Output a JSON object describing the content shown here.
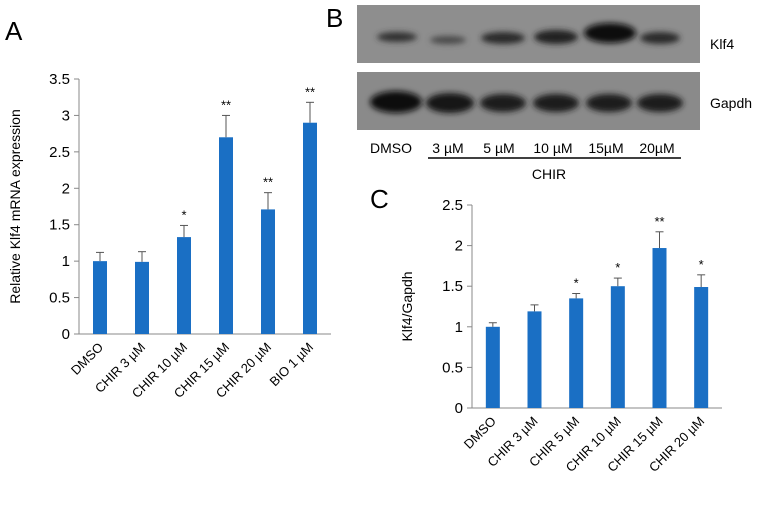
{
  "chart_data": [
    {
      "type": "bar",
      "panel": "A",
      "ylabel": "Relative Klf4 mRNA expression",
      "categories": [
        "DMSO",
        "CHIR 3 µM",
        "CHIR 10 µM",
        "CHIR 15 µM",
        "CHIR 20 µM",
        "BIO 1 µM"
      ],
      "values": [
        1.0,
        0.99,
        1.33,
        2.7,
        1.71,
        2.9
      ],
      "errors": [
        0.12,
        0.14,
        0.16,
        0.3,
        0.23,
        0.28
      ],
      "annotations": [
        null,
        null,
        "*",
        "**",
        "**",
        "**"
      ],
      "color": "#1a6fc4",
      "ylim": [
        0,
        3.5
      ],
      "yticks": [
        0,
        0.5,
        1,
        1.5,
        2,
        2.5,
        3,
        3.5
      ]
    },
    {
      "type": "bar",
      "panel": "C",
      "ylabel": "Klf4/Gapdh",
      "categories": [
        "DMSO",
        "CHIR 3 µM",
        "CHIR 5 µM",
        "CHIR 10 µM",
        "CHIR 15 µM",
        "CHIR 20 µM"
      ],
      "values": [
        1.0,
        1.19,
        1.35,
        1.5,
        1.97,
        1.49
      ],
      "errors": [
        0.05,
        0.08,
        0.06,
        0.1,
        0.2,
        0.15
      ],
      "annotations": [
        null,
        null,
        "*",
        "*",
        "**",
        "*"
      ],
      "color": "#1a6fc4",
      "ylim": [
        0,
        2.5
      ],
      "yticks": [
        0,
        0.5,
        1,
        1.5,
        2,
        2.5
      ]
    }
  ],
  "blot": {
    "panel": "B",
    "rows": [
      "Klf4",
      "Gapdh"
    ],
    "lanes": [
      "DMSO",
      "3 µM",
      "5 µM",
      "10 µM",
      "15µM",
      "20µM"
    ],
    "group": "CHIR"
  }
}
